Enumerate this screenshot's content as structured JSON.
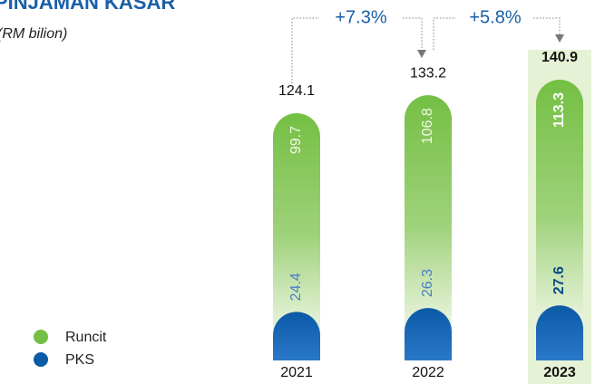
{
  "chart_data": {
    "type": "bar",
    "stacked": true,
    "title": "PINJAMAN KASAR",
    "subtitle": "(RM bilion)",
    "categories": [
      "2021",
      "2022",
      "2023"
    ],
    "series": [
      {
        "name": "PKS",
        "color": "#0b5aa6",
        "values": [
          24.4,
          26.3,
          27.6
        ]
      },
      {
        "name": "Runcit",
        "color": "#74bf44",
        "values": [
          99.7,
          106.8,
          113.3
        ]
      }
    ],
    "totals": [
      124.1,
      133.2,
      140.9
    ],
    "annotations": [
      "+7.3%",
      "+5.8%"
    ],
    "legend": [
      "Runcit",
      "PKS"
    ]
  }
}
